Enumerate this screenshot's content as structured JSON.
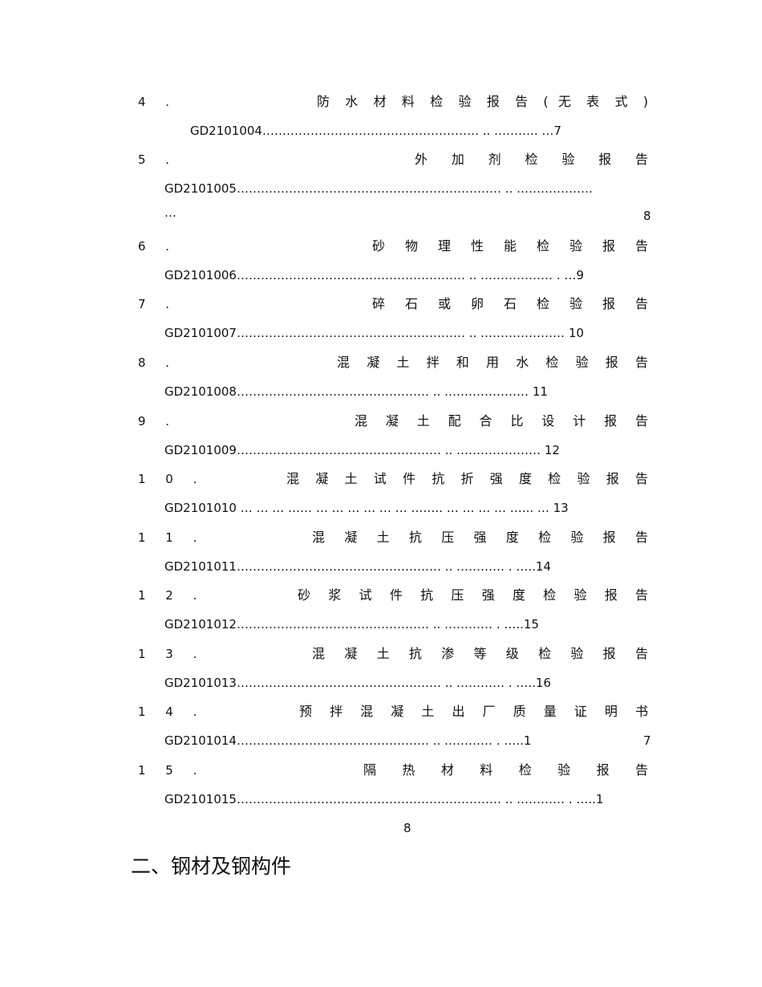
{
  "entries": [
    {
      "num": "4 .",
      "title": "防 水 材 料 检 验 报 告 ( 无 表 式 )",
      "code": "GD2101004………………………………………………   .. ………..  …7",
      "extra": "",
      "page_tail": ""
    },
    {
      "num": "5 .",
      "title": "外 加 剂 检 验 报 告",
      "code": "GD2101005…………………………………………………………   .. ……………….",
      "extra": "…",
      "page_tail": "8"
    },
    {
      "num": "6 .",
      "title": "砂 物 理 性 能 检 验 报 告",
      "code": "GD2101006…………………………………………………   .. ……………… . …9",
      "extra": "",
      "page_tail": ""
    },
    {
      "num": "7 .",
      "title": "碎 石 或 卵 石 检 验 报 告",
      "code": "GD2101007…………………………………………………   .. ………………… 10",
      "extra": "",
      "page_tail": ""
    },
    {
      "num": "8 .",
      "title": "混 凝 土 拌 和 用 水 检 验 报 告",
      "code": "GD2101008…………………………………………   .. ………………… 11",
      "extra": "",
      "page_tail": ""
    },
    {
      "num": "9 .",
      "title": "混 凝 土 配 合 比 设 计 报 告",
      "code": "GD2101009……………………………………………   .. ………………… 12",
      "extra": "",
      "page_tail": ""
    },
    {
      "num": "1 0 .",
      "title": "混 凝 土 试 件 抗 折 强 度 检 验 报 告",
      "code": "GD2101010 … … … …… … … … … … … ……..   … … … … …...  …  13",
      "extra": "",
      "page_tail": ""
    },
    {
      "num": "1 1 .",
      "title": "混 凝 土 抗 压 强 度 检 验 报 告",
      "code": "GD2101011……………………………………………   .. ………… . …..14",
      "extra": "",
      "page_tail": ""
    },
    {
      "num": "1 2 .",
      "title": "砂 浆 试 件 抗 压 强 度 检 验 报 告",
      "code": "GD2101012…………………………………………   .. ………… . …..15",
      "extra": "",
      "page_tail": ""
    },
    {
      "num": "1 3 .",
      "title": "混 凝 土 抗 渗 等 级 检 验 报 告",
      "code": "GD2101013……………………………………………   .. ………… . …..16",
      "extra": "",
      "page_tail": ""
    },
    {
      "num": "1 4 .",
      "title": "预 拌 混 凝 土 出 厂 质 量 证 明 书",
      "code": "GD2101014…………………………………………   .. ………… . …..1",
      "extra": "",
      "page_tail": "7"
    },
    {
      "num": "1 5 .",
      "title": "隔 热 材 料 检 验 报 告",
      "code": "GD2101015…………………………………………………………   .. ………… . …..1",
      "extra": "8",
      "page_tail": ""
    }
  ],
  "section_heading": "二、钢材及钢构件"
}
